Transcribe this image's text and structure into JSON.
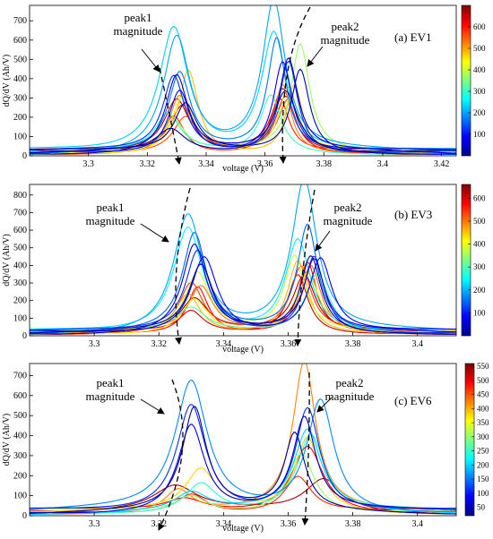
{
  "chart_data": [
    {
      "type": "line",
      "title": "(a) EV1",
      "xlabel": "voltage (V)",
      "ylabel": "dQ/dV (Ah/V)",
      "xlim": [
        3.28,
        3.425
      ],
      "ylim": [
        0,
        780
      ],
      "xticks": [
        3.3,
        3.32,
        3.34,
        3.36,
        3.38,
        3.4,
        3.42
      ],
      "yticks": [
        0,
        100,
        200,
        300,
        400,
        500,
        600,
        700
      ],
      "colorbar": {
        "min": 0,
        "max": 700,
        "ticks": [
          100,
          200,
          300,
          400,
          500,
          600
        ]
      },
      "annotations": [
        {
          "lines": [
            "peak1",
            "magnitude"
          ]
        },
        {
          "lines": [
            "peak2",
            "magnitude"
          ]
        }
      ],
      "series": [
        {
          "c": 650,
          "p1": [
            3.33,
            260
          ],
          "p2": [
            3.366,
            320
          ],
          "w": 0.005
        },
        {
          "c": 620,
          "p1": [
            3.332,
            240
          ],
          "p2": [
            3.367,
            300
          ],
          "w": 0.005
        },
        {
          "c": 590,
          "p1": [
            3.329,
            200
          ],
          "p2": [
            3.365,
            280
          ],
          "w": 0.0045
        },
        {
          "c": 560,
          "p1": [
            3.333,
            180
          ],
          "p2": [
            3.368,
            260
          ],
          "w": 0.005
        },
        {
          "c": 520,
          "p1": [
            3.331,
            280
          ],
          "p2": [
            3.366,
            350
          ],
          "w": 0.004
        },
        {
          "c": 480,
          "p1": [
            3.334,
            430
          ],
          "p2": [
            3.37,
            360
          ],
          "w": 0.004
        },
        {
          "c": 420,
          "p1": [
            3.332,
            300
          ],
          "p2": [
            3.368,
            330
          ],
          "w": 0.0045
        },
        {
          "c": 370,
          "p1": [
            3.329,
            160
          ],
          "p2": [
            3.372,
            550
          ],
          "w": 0.0045
        },
        {
          "c": 300,
          "p1": [
            3.327,
            190
          ],
          "p2": [
            3.362,
            300
          ],
          "w": 0.005
        },
        {
          "c": 230,
          "p1": [
            3.329,
            650
          ],
          "p2": [
            3.363,
            620
          ],
          "w": 0.006
        },
        {
          "c": 200,
          "p1": [
            3.33,
            600
          ],
          "p2": [
            3.363,
            770
          ],
          "w": 0.0055
        },
        {
          "c": 170,
          "p1": [
            3.331,
            400
          ],
          "p2": [
            3.364,
            580
          ],
          "w": 0.0045
        },
        {
          "c": 120,
          "p1": [
            3.329,
            390
          ],
          "p2": [
            3.368,
            480
          ],
          "w": 0.0045
        },
        {
          "c": 90,
          "p1": [
            3.331,
            330
          ],
          "p2": [
            3.366,
            470
          ],
          "w": 0.0045
        },
        {
          "c": 60,
          "p1": [
            3.33,
            400
          ],
          "p2": [
            3.368,
            470
          ],
          "w": 0.0045
        },
        {
          "c": 30,
          "p1": [
            3.333,
            240
          ],
          "p2": [
            3.372,
            430
          ],
          "w": 0.0045
        },
        {
          "c": 15,
          "p1": [
            3.328,
            120
          ],
          "p2": [
            3.367,
            330
          ],
          "w": 0.006
        }
      ]
    },
    {
      "type": "line",
      "title": "(b) EV3",
      "xlabel": "voltage (V)",
      "ylabel": "dQ/dV (Ah/V)",
      "xlim": [
        3.28,
        3.412
      ],
      "ylim": [
        0,
        860
      ],
      "xticks": [
        3.3,
        3.32,
        3.34,
        3.36,
        3.38,
        3.4
      ],
      "yticks": [
        0,
        100,
        200,
        300,
        400,
        500,
        600,
        700,
        800
      ],
      "colorbar": {
        "min": 0,
        "max": 660,
        "ticks": [
          100,
          200,
          300,
          400,
          500,
          600
        ]
      },
      "annotations": [
        {
          "lines": [
            "peak1",
            "magnitude"
          ]
        },
        {
          "lines": [
            "peak2",
            "magnitude"
          ]
        }
      ],
      "series": [
        {
          "c": 640,
          "p1": [
            3.331,
            180
          ],
          "p2": [
            3.365,
            320
          ],
          "w": 0.005
        },
        {
          "c": 610,
          "p1": [
            3.33,
            120
          ],
          "p2": [
            3.363,
            340
          ],
          "w": 0.0045
        },
        {
          "c": 580,
          "p1": [
            3.332,
            270
          ],
          "p2": [
            3.366,
            400
          ],
          "w": 0.004
        },
        {
          "c": 540,
          "p1": [
            3.33,
            280
          ],
          "p2": [
            3.364,
            360
          ],
          "w": 0.0045
        },
        {
          "c": 500,
          "p1": [
            3.333,
            250
          ],
          "p2": [
            3.367,
            380
          ],
          "w": 0.0045
        },
        {
          "c": 460,
          "p1": [
            3.329,
            220
          ],
          "p2": [
            3.363,
            420
          ],
          "w": 0.0045
        },
        {
          "c": 420,
          "p1": [
            3.331,
            200
          ],
          "p2": [
            3.366,
            330
          ],
          "w": 0.005
        },
        {
          "c": 380,
          "p1": [
            3.332,
            330
          ],
          "p2": [
            3.362,
            420
          ],
          "w": 0.0045
        },
        {
          "c": 300,
          "p1": [
            3.33,
            130
          ],
          "p2": [
            3.369,
            340
          ],
          "w": 0.0055
        },
        {
          "c": 240,
          "p1": [
            3.329,
            600
          ],
          "p2": [
            3.363,
            530
          ],
          "w": 0.0055
        },
        {
          "c": 190,
          "p1": [
            3.329,
            670
          ],
          "p2": [
            3.365,
            850
          ],
          "w": 0.0055
        },
        {
          "c": 150,
          "p1": [
            3.331,
            550
          ],
          "p2": [
            3.366,
            600
          ],
          "w": 0.0045
        },
        {
          "c": 110,
          "p1": [
            3.332,
            460
          ],
          "p2": [
            3.368,
            440
          ],
          "w": 0.0045
        },
        {
          "c": 80,
          "p1": [
            3.334,
            440
          ],
          "p2": [
            3.37,
            420
          ],
          "w": 0.005
        },
        {
          "c": 50,
          "p1": [
            3.331,
            500
          ],
          "p2": [
            3.368,
            400
          ],
          "w": 0.0045
        },
        {
          "c": 25,
          "p1": [
            3.333,
            370
          ],
          "p2": [
            3.367,
            430
          ],
          "w": 0.0045
        }
      ]
    },
    {
      "type": "line",
      "title": "(c) EV6",
      "xlabel": "voltage (V)",
      "ylabel": "dQ/dV (Ah/V)",
      "xlim": [
        3.28,
        3.412
      ],
      "ylim": [
        0,
        760
      ],
      "xticks": [
        3.3,
        3.32,
        3.34,
        3.36,
        3.38,
        3.4
      ],
      "yticks": [
        0,
        100,
        200,
        300,
        400,
        500,
        600,
        700
      ],
      "colorbar": {
        "min": 20,
        "max": 560,
        "ticks": [
          50,
          100,
          150,
          200,
          250,
          300,
          350,
          400,
          450,
          500,
          550
        ]
      },
      "annotations": [
        {
          "lines": [
            "peak1",
            "magnitude"
          ]
        },
        {
          "lines": [
            "peak2",
            "magnitude"
          ]
        }
      ],
      "series": [
        {
          "c": 540,
          "p1": [
            3.325,
            120
          ],
          "p2": [
            3.371,
            160
          ],
          "w": 0.008
        },
        {
          "c": 500,
          "p1": [
            3.328,
            60
          ],
          "p2": [
            3.366,
            340
          ],
          "w": 0.007
        },
        {
          "c": 470,
          "p1": [
            3.33,
            100
          ],
          "p2": [
            3.363,
            180
          ],
          "w": 0.006
        },
        {
          "c": 420,
          "p1": [
            3.326,
            110
          ],
          "p2": [
            3.365,
            740
          ],
          "w": 0.005
        },
        {
          "c": 380,
          "p1": [
            3.333,
            200
          ],
          "p2": [
            3.366,
            370
          ],
          "w": 0.0055
        },
        {
          "c": 300,
          "p1": [
            3.33,
            80
          ],
          "p2": [
            3.364,
            300
          ],
          "w": 0.006
        },
        {
          "c": 250,
          "p1": [
            3.333,
            150
          ],
          "p2": [
            3.367,
            380
          ],
          "w": 0.006
        },
        {
          "c": 200,
          "p1": [
            3.33,
            90
          ],
          "p2": [
            3.366,
            400
          ],
          "w": 0.006
        },
        {
          "c": 160,
          "p1": [
            3.33,
            640
          ],
          "p2": [
            3.37,
            560
          ],
          "w": 0.006
        },
        {
          "c": 110,
          "p1": [
            3.33,
            540
          ],
          "p2": [
            3.366,
            520
          ],
          "w": 0.0055
        },
        {
          "c": 70,
          "p1": [
            3.33,
            440
          ],
          "p2": [
            3.365,
            460
          ],
          "w": 0.005
        },
        {
          "c": 40,
          "p1": [
            3.331,
            510
          ],
          "p2": [
            3.362,
            380
          ],
          "w": 0.0045
        }
      ]
    }
  ]
}
